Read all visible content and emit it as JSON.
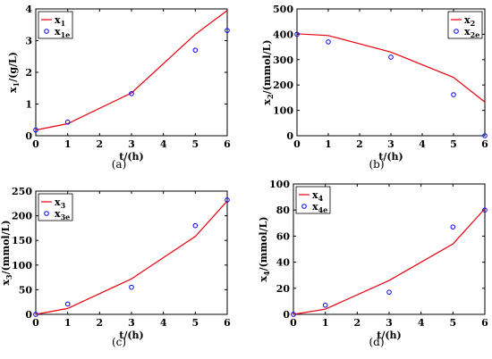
{
  "chart_data": [
    {
      "type": "line",
      "panel_label": "(a)",
      "xlabel": "t/(h)",
      "ylabel": {
        "base": "x",
        "sub": "1",
        "rest": "/(g/L)"
      },
      "xlim": [
        0,
        6
      ],
      "ylim": [
        0,
        4
      ],
      "xticks": [
        0,
        1,
        2,
        3,
        4,
        5,
        6
      ],
      "yticks": [
        0,
        1,
        2,
        3,
        4
      ],
      "grid": false,
      "legend_placement": "top-left",
      "series": [
        {
          "name": "x",
          "sub": "1",
          "kind": "line",
          "color": "#e8000b",
          "x": [
            0,
            1,
            3,
            5,
            6
          ],
          "y": [
            0.18,
            0.38,
            1.35,
            3.2,
            3.95
          ]
        },
        {
          "name": "x",
          "sub": "1e",
          "kind": "scatter",
          "color": "#0000ff",
          "x": [
            0,
            1,
            3,
            5,
            6
          ],
          "y": [
            0.18,
            0.43,
            1.33,
            2.7,
            3.32
          ]
        }
      ]
    },
    {
      "type": "line",
      "panel_label": "(b)",
      "xlabel": "t/(h)",
      "ylabel": {
        "base": "x",
        "sub": "2",
        "rest": "/(mmol/L)"
      },
      "xlim": [
        0,
        6
      ],
      "ylim": [
        0,
        500
      ],
      "xticks": [
        0,
        1,
        2,
        3,
        4,
        5,
        6
      ],
      "yticks": [
        0,
        100,
        200,
        300,
        400,
        500
      ],
      "grid": false,
      "legend_placement": "top-right",
      "series": [
        {
          "name": "x",
          "sub": "2",
          "kind": "line",
          "color": "#e8000b",
          "x": [
            0,
            1,
            3,
            5,
            6
          ],
          "y": [
            402,
            395,
            330,
            230,
            133
          ]
        },
        {
          "name": "x",
          "sub": "2e",
          "kind": "scatter",
          "color": "#0000ff",
          "x": [
            0,
            1,
            3,
            5,
            6
          ],
          "y": [
            400,
            370,
            310,
            162,
            0
          ]
        }
      ]
    },
    {
      "type": "line",
      "panel_label": "(c)",
      "xlabel": "t/(h)",
      "ylabel": {
        "base": "x",
        "sub": "3",
        "rest": "/(mmol/L)"
      },
      "xlim": [
        0,
        6
      ],
      "ylim": [
        0,
        250
      ],
      "xticks": [
        0,
        1,
        2,
        3,
        4,
        5,
        6
      ],
      "yticks": [
        0,
        50,
        100,
        150,
        200,
        250
      ],
      "grid": false,
      "legend_placement": "top-left",
      "series": [
        {
          "name": "x",
          "sub": "3",
          "kind": "line",
          "color": "#e8000b",
          "x": [
            0,
            1,
            3,
            5,
            6
          ],
          "y": [
            0,
            12,
            72,
            158,
            230
          ]
        },
        {
          "name": "x",
          "sub": "3e",
          "kind": "scatter",
          "color": "#0000ff",
          "x": [
            0,
            1,
            3,
            5,
            6
          ],
          "y": [
            0,
            21,
            55,
            180,
            232
          ]
        }
      ]
    },
    {
      "type": "line",
      "panel_label": "(d)",
      "xlabel": "t/(h)",
      "ylabel": {
        "base": "x",
        "sub": "4",
        "rest": "/(mmol/L)"
      },
      "xlim": [
        0,
        6
      ],
      "ylim": [
        0,
        100
      ],
      "xticks": [
        0,
        1,
        2,
        3,
        4,
        5,
        6
      ],
      "yticks": [
        0,
        20,
        40,
        60,
        80,
        100
      ],
      "grid": false,
      "legend_placement": "top-left",
      "series": [
        {
          "name": "x",
          "sub": "4",
          "kind": "line",
          "color": "#e8000b",
          "x": [
            0,
            1,
            3,
            5,
            6
          ],
          "y": [
            0,
            4,
            26,
            54,
            81
          ]
        },
        {
          "name": "x",
          "sub": "4e",
          "kind": "scatter",
          "color": "#0000ff",
          "x": [
            0,
            1,
            3,
            5,
            6
          ],
          "y": [
            0,
            7,
            17,
            67,
            80
          ]
        }
      ]
    }
  ]
}
